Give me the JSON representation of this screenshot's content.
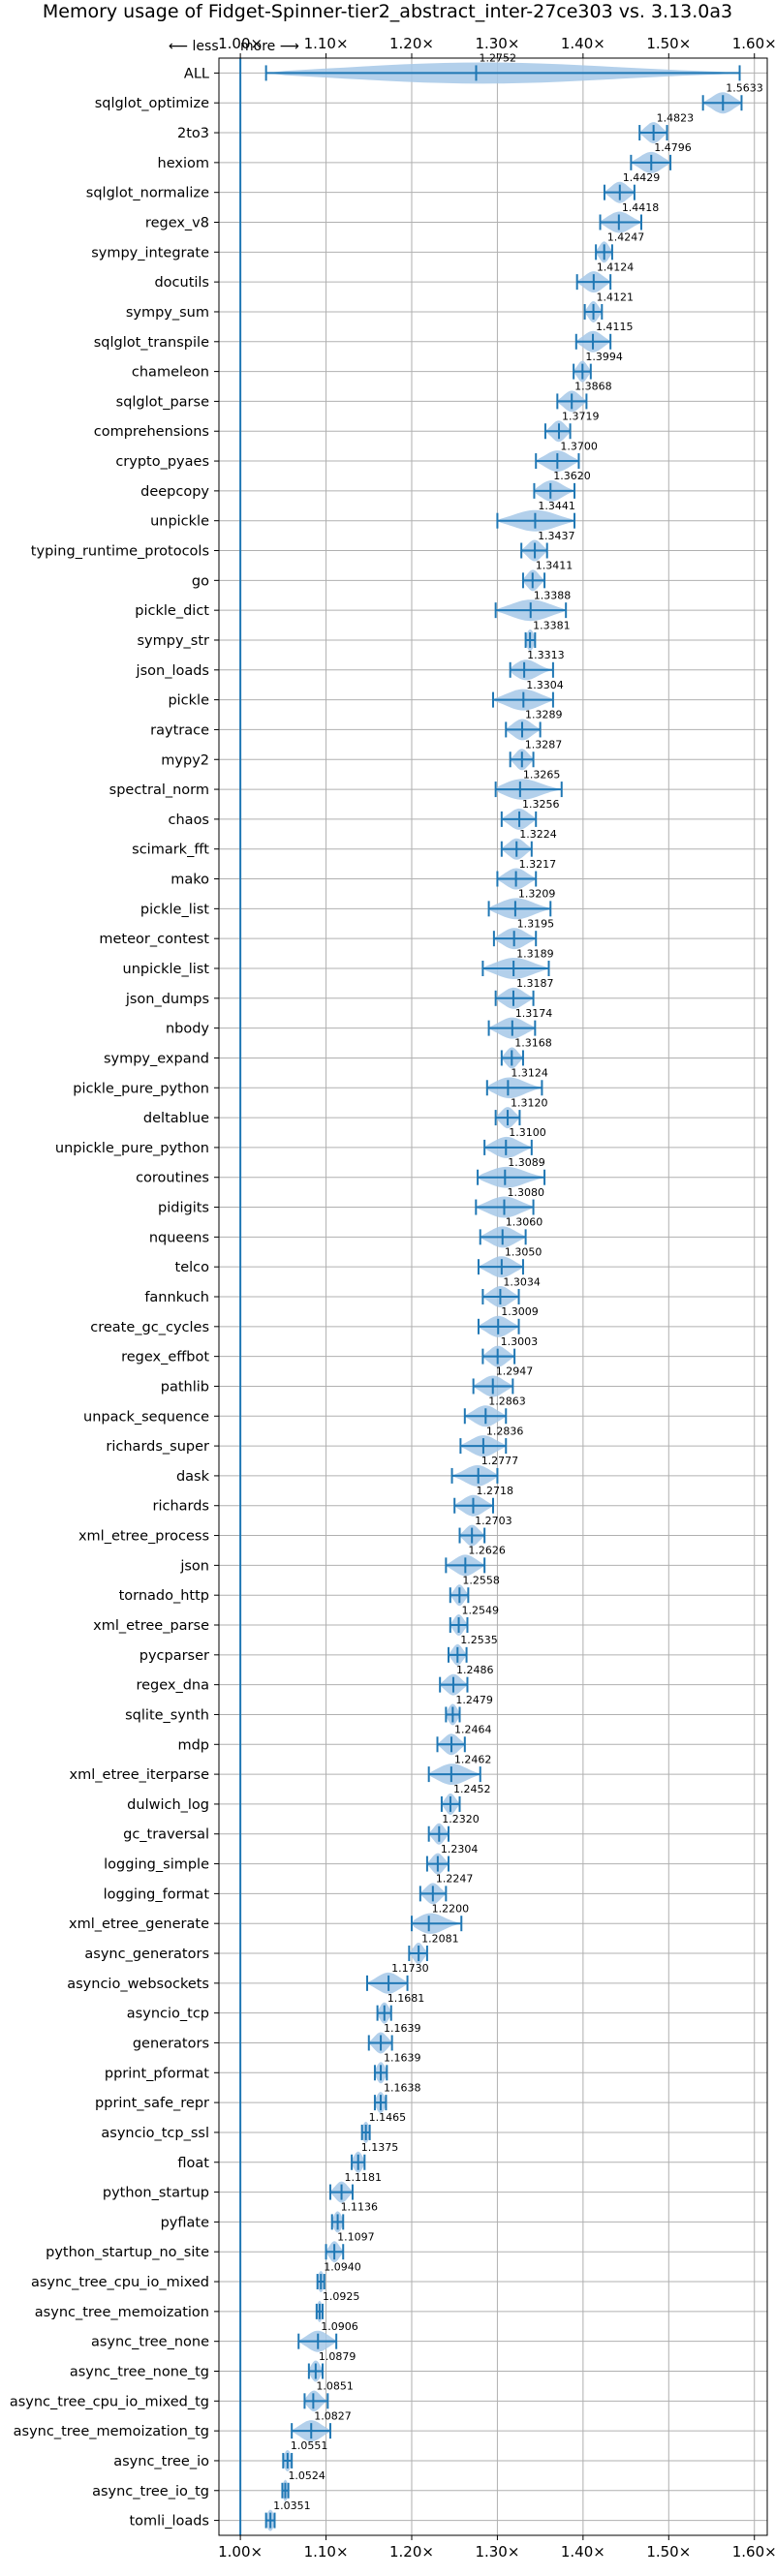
{
  "chart_data": {
    "type": "violin",
    "title": "Memory usage of Fidget-Spinner-tier2_abstract_inter-27ce303 vs. 3.13.0a3",
    "direction_labels": {
      "less": "⟵ less",
      "more": "more ⟶"
    },
    "xlim": [
      0.975,
      1.615
    ],
    "xticks": [
      1.0,
      1.1,
      1.2,
      1.3,
      1.4,
      1.5,
      1.6
    ],
    "xtick_labels": [
      "1.00×",
      "1.10×",
      "1.20×",
      "1.30×",
      "1.40×",
      "1.50×",
      "1.60×"
    ],
    "reference_line": 1.0,
    "grid": true,
    "colors": {
      "line": "#1f77b4",
      "violin": "#a6c8e8",
      "grid": "#b0b0b0",
      "reference": "#1f77b4"
    },
    "categories": [
      {
        "name": "ALL",
        "mean": 1.2752,
        "label": "1.2752",
        "min": 1.03,
        "max": 1.5828
      },
      {
        "name": "sqlglot_optimize",
        "mean": 1.5633,
        "label": "1.5633",
        "min": 1.54,
        "max": 1.585
      },
      {
        "name": "2to3",
        "mean": 1.4823,
        "label": "1.4823",
        "min": 1.466,
        "max": 1.498
      },
      {
        "name": "hexiom",
        "mean": 1.4796,
        "label": "1.4796",
        "min": 1.456,
        "max": 1.502
      },
      {
        "name": "sqlglot_normalize",
        "mean": 1.4429,
        "label": "1.4429",
        "min": 1.425,
        "max": 1.46
      },
      {
        "name": "regex_v8",
        "mean": 1.4418,
        "label": "1.4418",
        "min": 1.42,
        "max": 1.468
      },
      {
        "name": "sympy_integrate",
        "mean": 1.4247,
        "label": "1.4247",
        "min": 1.415,
        "max": 1.434
      },
      {
        "name": "docutils",
        "mean": 1.4124,
        "label": "1.4124",
        "min": 1.393,
        "max": 1.432
      },
      {
        "name": "sympy_sum",
        "mean": 1.4121,
        "label": "1.4121",
        "min": 1.402,
        "max": 1.422
      },
      {
        "name": "sqlglot_transpile",
        "mean": 1.4115,
        "label": "1.4115",
        "min": 1.392,
        "max": 1.432
      },
      {
        "name": "chameleon",
        "mean": 1.3994,
        "label": "1.3994",
        "min": 1.389,
        "max": 1.409
      },
      {
        "name": "sqlglot_parse",
        "mean": 1.3868,
        "label": "1.3868",
        "min": 1.37,
        "max": 1.404
      },
      {
        "name": "comprehensions",
        "mean": 1.3719,
        "label": "1.3719",
        "min": 1.356,
        "max": 1.385
      },
      {
        "name": "crypto_pyaes",
        "mean": 1.37,
        "label": "1.3700",
        "min": 1.345,
        "max": 1.395
      },
      {
        "name": "deepcopy",
        "mean": 1.362,
        "label": "1.3620",
        "min": 1.343,
        "max": 1.39
      },
      {
        "name": "unpickle",
        "mean": 1.3441,
        "label": "1.3441",
        "min": 1.3,
        "max": 1.39
      },
      {
        "name": "typing_runtime_protocols",
        "mean": 1.3437,
        "label": "1.3437",
        "min": 1.328,
        "max": 1.358
      },
      {
        "name": "go",
        "mean": 1.3411,
        "label": "1.3411",
        "min": 1.33,
        "max": 1.355
      },
      {
        "name": "pickle_dict",
        "mean": 1.3388,
        "label": "1.3388",
        "min": 1.298,
        "max": 1.38
      },
      {
        "name": "sympy_str",
        "mean": 1.3381,
        "label": "1.3381",
        "min": 1.333,
        "max": 1.344
      },
      {
        "name": "json_loads",
        "mean": 1.3313,
        "label": "1.3313",
        "min": 1.315,
        "max": 1.365
      },
      {
        "name": "pickle",
        "mean": 1.3304,
        "label": "1.3304",
        "min": 1.295,
        "max": 1.365
      },
      {
        "name": "raytrace",
        "mean": 1.3289,
        "label": "1.3289",
        "min": 1.31,
        "max": 1.35
      },
      {
        "name": "mypy2",
        "mean": 1.3287,
        "label": "1.3287",
        "min": 1.315,
        "max": 1.342
      },
      {
        "name": "spectral_norm",
        "mean": 1.3265,
        "label": "1.3265",
        "min": 1.298,
        "max": 1.375
      },
      {
        "name": "chaos",
        "mean": 1.3256,
        "label": "1.3256",
        "min": 1.305,
        "max": 1.345
      },
      {
        "name": "scimark_fft",
        "mean": 1.3224,
        "label": "1.3224",
        "min": 1.305,
        "max": 1.34
      },
      {
        "name": "mako",
        "mean": 1.3217,
        "label": "1.3217",
        "min": 1.3,
        "max": 1.345
      },
      {
        "name": "pickle_list",
        "mean": 1.3209,
        "label": "1.3209",
        "min": 1.29,
        "max": 1.362
      },
      {
        "name": "meteor_contest",
        "mean": 1.3195,
        "label": "1.3195",
        "min": 1.296,
        "max": 1.345
      },
      {
        "name": "unpickle_list",
        "mean": 1.3189,
        "label": "1.3189",
        "min": 1.283,
        "max": 1.36
      },
      {
        "name": "json_dumps",
        "mean": 1.3187,
        "label": "1.3187",
        "min": 1.298,
        "max": 1.342
      },
      {
        "name": "nbody",
        "mean": 1.3174,
        "label": "1.3174",
        "min": 1.29,
        "max": 1.344
      },
      {
        "name": "sympy_expand",
        "mean": 1.3168,
        "label": "1.3168",
        "min": 1.305,
        "max": 1.33
      },
      {
        "name": "pickle_pure_python",
        "mean": 1.3124,
        "label": "1.3124",
        "min": 1.288,
        "max": 1.352
      },
      {
        "name": "deltablue",
        "mean": 1.312,
        "label": "1.3120",
        "min": 1.298,
        "max": 1.326
      },
      {
        "name": "unpickle_pure_python",
        "mean": 1.31,
        "label": "1.3100",
        "min": 1.285,
        "max": 1.34
      },
      {
        "name": "coroutines",
        "mean": 1.3089,
        "label": "1.3089",
        "min": 1.277,
        "max": 1.355
      },
      {
        "name": "pidigits",
        "mean": 1.308,
        "label": "1.3080",
        "min": 1.275,
        "max": 1.342
      },
      {
        "name": "nqueens",
        "mean": 1.306,
        "label": "1.3060",
        "min": 1.28,
        "max": 1.333
      },
      {
        "name": "telco",
        "mean": 1.305,
        "label": "1.3050",
        "min": 1.278,
        "max": 1.33
      },
      {
        "name": "fannkuch",
        "mean": 1.3034,
        "label": "1.3034",
        "min": 1.283,
        "max": 1.325
      },
      {
        "name": "create_gc_cycles",
        "mean": 1.3009,
        "label": "1.3009",
        "min": 1.278,
        "max": 1.325
      },
      {
        "name": "regex_effbot",
        "mean": 1.3003,
        "label": "1.3003",
        "min": 1.283,
        "max": 1.32
      },
      {
        "name": "pathlib",
        "mean": 1.2947,
        "label": "1.2947",
        "min": 1.272,
        "max": 1.318
      },
      {
        "name": "unpack_sequence",
        "mean": 1.2863,
        "label": "1.2863",
        "min": 1.262,
        "max": 1.31
      },
      {
        "name": "richards_super",
        "mean": 1.2836,
        "label": "1.2836",
        "min": 1.257,
        "max": 1.31
      },
      {
        "name": "dask",
        "mean": 1.2777,
        "label": "1.2777",
        "min": 1.247,
        "max": 1.3
      },
      {
        "name": "richards",
        "mean": 1.2718,
        "label": "1.2718",
        "min": 1.25,
        "max": 1.295
      },
      {
        "name": "xml_etree_process",
        "mean": 1.2703,
        "label": "1.2703",
        "min": 1.256,
        "max": 1.285
      },
      {
        "name": "json",
        "mean": 1.2626,
        "label": "1.2626",
        "min": 1.24,
        "max": 1.285
      },
      {
        "name": "tornado_http",
        "mean": 1.2558,
        "label": "1.2558",
        "min": 1.245,
        "max": 1.266
      },
      {
        "name": "xml_etree_parse",
        "mean": 1.2549,
        "label": "1.2549",
        "min": 1.245,
        "max": 1.265
      },
      {
        "name": "pycparser",
        "mean": 1.2535,
        "label": "1.2535",
        "min": 1.243,
        "max": 1.264
      },
      {
        "name": "regex_dna",
        "mean": 1.2486,
        "label": "1.2486",
        "min": 1.233,
        "max": 1.265
      },
      {
        "name": "sqlite_synth",
        "mean": 1.2479,
        "label": "1.2479",
        "min": 1.24,
        "max": 1.256
      },
      {
        "name": "mdp",
        "mean": 1.2464,
        "label": "1.2464",
        "min": 1.23,
        "max": 1.262
      },
      {
        "name": "xml_etree_iterparse",
        "mean": 1.2462,
        "label": "1.2462",
        "min": 1.22,
        "max": 1.28
      },
      {
        "name": "dulwich_log",
        "mean": 1.2452,
        "label": "1.2452",
        "min": 1.235,
        "max": 1.256
      },
      {
        "name": "gc_traversal",
        "mean": 1.232,
        "label": "1.2320",
        "min": 1.22,
        "max": 1.243
      },
      {
        "name": "logging_simple",
        "mean": 1.2304,
        "label": "1.2304",
        "min": 1.218,
        "max": 1.243
      },
      {
        "name": "logging_format",
        "mean": 1.2247,
        "label": "1.2247",
        "min": 1.21,
        "max": 1.24
      },
      {
        "name": "xml_etree_generate",
        "mean": 1.22,
        "label": "1.2200",
        "min": 1.2,
        "max": 1.258
      },
      {
        "name": "async_generators",
        "mean": 1.2081,
        "label": "1.2081",
        "min": 1.197,
        "max": 1.218
      },
      {
        "name": "asyncio_websockets",
        "mean": 1.173,
        "label": "1.1730",
        "min": 1.148,
        "max": 1.195
      },
      {
        "name": "asyncio_tcp",
        "mean": 1.1681,
        "label": "1.1681",
        "min": 1.16,
        "max": 1.176
      },
      {
        "name": "generators",
        "mean": 1.1639,
        "label": "1.1639",
        "min": 1.15,
        "max": 1.177
      },
      {
        "name": "pprint_pformat",
        "mean": 1.1639,
        "label": "1.1639",
        "min": 1.157,
        "max": 1.171
      },
      {
        "name": "pprint_safe_repr",
        "mean": 1.1638,
        "label": "1.1638",
        "min": 1.157,
        "max": 1.17
      },
      {
        "name": "asyncio_tcp_ssl",
        "mean": 1.1465,
        "label": "1.1465",
        "min": 1.142,
        "max": 1.151
      },
      {
        "name": "float",
        "mean": 1.1375,
        "label": "1.1375",
        "min": 1.13,
        "max": 1.145
      },
      {
        "name": "python_startup",
        "mean": 1.1181,
        "label": "1.1181",
        "min": 1.105,
        "max": 1.131
      },
      {
        "name": "pyflate",
        "mean": 1.1136,
        "label": "1.1136",
        "min": 1.107,
        "max": 1.12
      },
      {
        "name": "python_startup_no_site",
        "mean": 1.1097,
        "label": "1.1097",
        "min": 1.1,
        "max": 1.12
      },
      {
        "name": "async_tree_cpu_io_mixed",
        "mean": 1.094,
        "label": "1.0940",
        "min": 1.09,
        "max": 1.098
      },
      {
        "name": "async_tree_memoization",
        "mean": 1.0925,
        "label": "1.0925",
        "min": 1.089,
        "max": 1.096
      },
      {
        "name": "async_tree_none",
        "mean": 1.0906,
        "label": "1.0906",
        "min": 1.068,
        "max": 1.112
      },
      {
        "name": "async_tree_none_tg",
        "mean": 1.0879,
        "label": "1.0879",
        "min": 1.08,
        "max": 1.096
      },
      {
        "name": "async_tree_cpu_io_mixed_tg",
        "mean": 1.0851,
        "label": "1.0851",
        "min": 1.075,
        "max": 1.102
      },
      {
        "name": "async_tree_memoization_tg",
        "mean": 1.0827,
        "label": "1.0827",
        "min": 1.06,
        "max": 1.105
      },
      {
        "name": "async_tree_io",
        "mean": 1.0551,
        "label": "1.0551",
        "min": 1.05,
        "max": 1.06
      },
      {
        "name": "async_tree_io_tg",
        "mean": 1.0524,
        "label": "1.0524",
        "min": 1.049,
        "max": 1.056
      },
      {
        "name": "tomli_loads",
        "mean": 1.0351,
        "label": "1.0351",
        "min": 1.03,
        "max": 1.04
      }
    ]
  }
}
